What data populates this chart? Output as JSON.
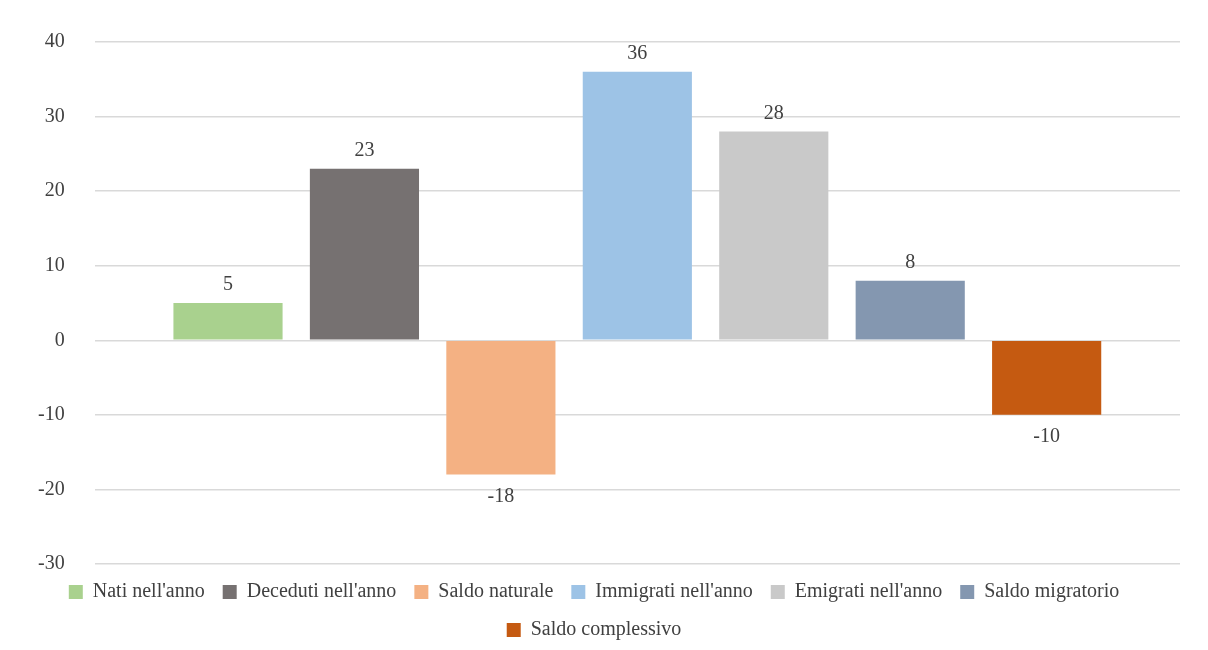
{
  "chart_data": {
    "type": "bar",
    "categories": [
      null
    ],
    "series": [
      {
        "name": "Nati nell'anno",
        "color": "#a9d18e",
        "values": [
          5
        ]
      },
      {
        "name": "Deceduti nell'anno",
        "color": "#767171",
        "values": [
          23
        ]
      },
      {
        "name": "Saldo naturale",
        "color": "#f4b183",
        "values": [
          -18
        ]
      },
      {
        "name": "Immigrati nell'anno",
        "color": "#9dc3e6",
        "values": [
          36
        ]
      },
      {
        "name": "Emigrati nell'anno",
        "color": "#c9c9c9",
        "values": [
          28
        ]
      },
      {
        "name": "Saldo migratorio",
        "color": "#8497b0",
        "values": [
          8
        ]
      },
      {
        "name": "Saldo complessivo",
        "color": "#c55a11",
        "values": [
          -10
        ]
      }
    ],
    "ylim": [
      -30,
      40
    ],
    "yticks": [
      -30,
      -20,
      -10,
      0,
      10,
      20,
      30,
      40
    ],
    "grid": "y",
    "legend": "bottom",
    "data_labels": true
  }
}
